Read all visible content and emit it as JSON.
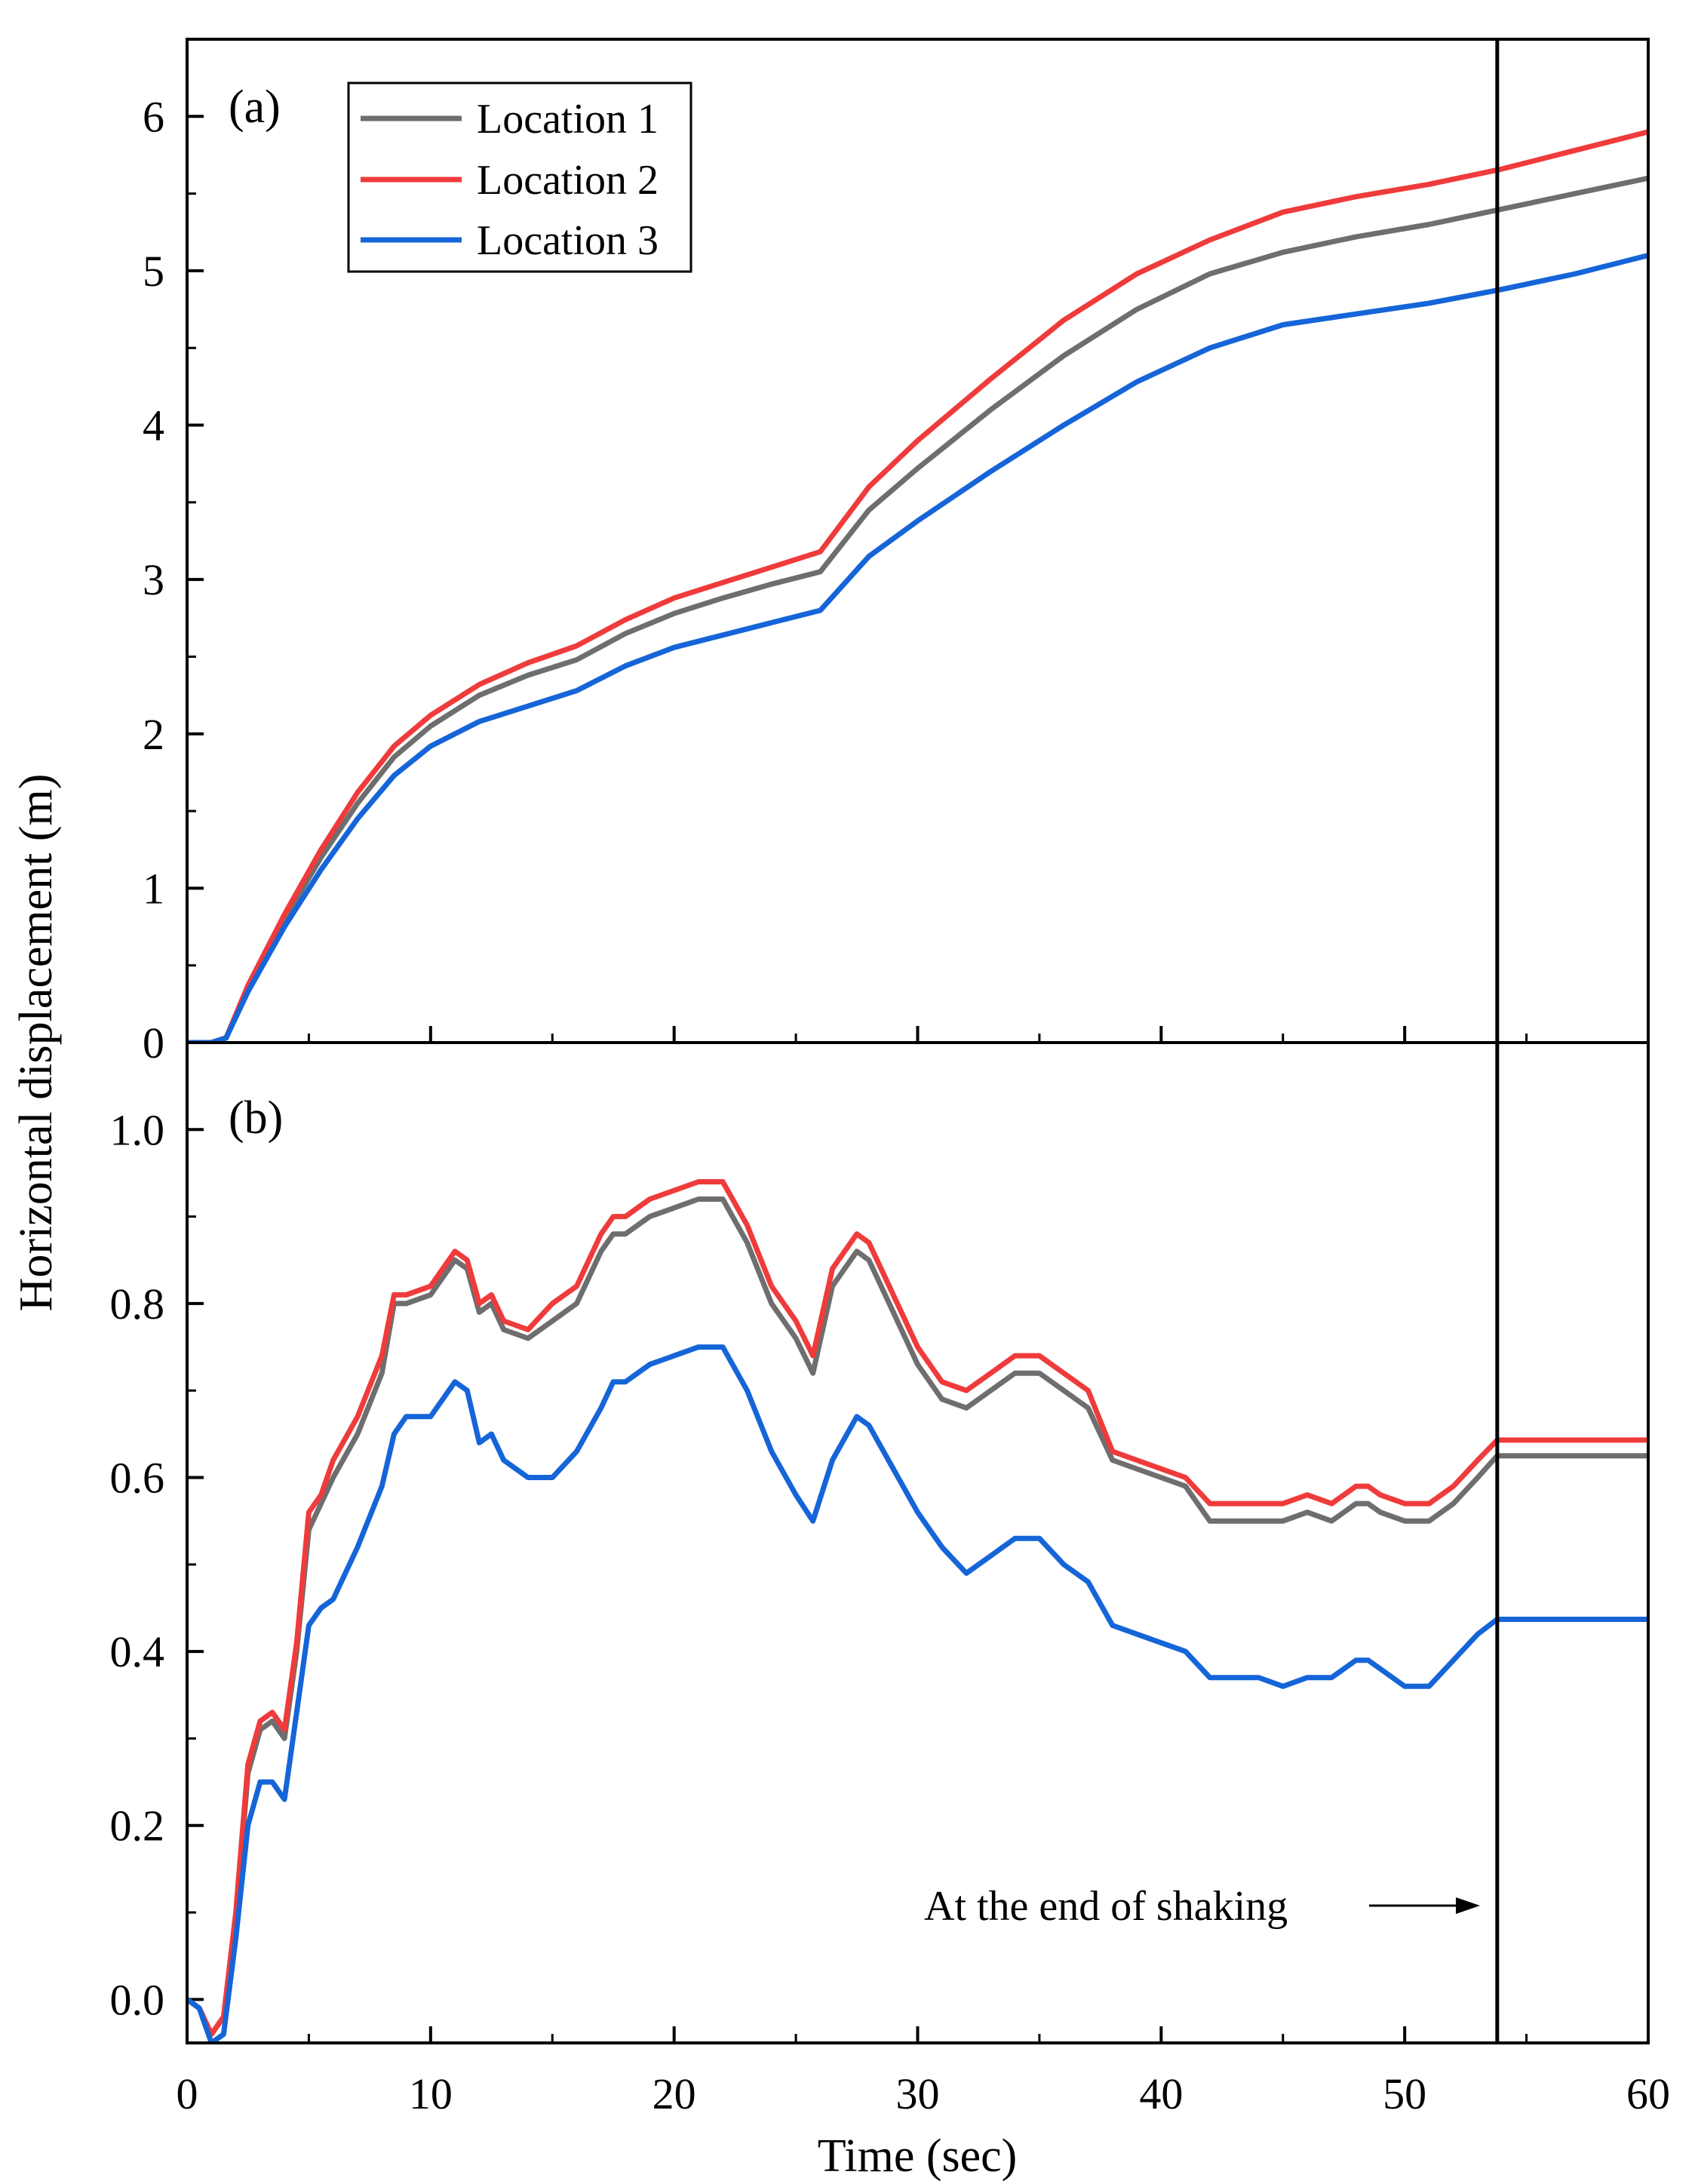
{
  "chart_data": [
    {
      "panel": "(a)",
      "type": "line",
      "title": "",
      "xlabel": "Time (sec)",
      "ylabel": "Horizontal displacement (m)",
      "xlim": [
        0,
        60
      ],
      "ylim": [
        0,
        6.5
      ],
      "xticks": [
        0,
        10,
        20,
        30,
        40,
        50,
        60
      ],
      "yticks": [
        0,
        1,
        2,
        3,
        4,
        5,
        6
      ],
      "ytick_labels": [
        "0",
        "1",
        "2",
        "3",
        "4",
        "5",
        "6"
      ],
      "legend_position": "top-left",
      "series": [
        {
          "name": "Location 1",
          "color": "#6e6e6e",
          "x": [
            0,
            1,
            1.6,
            2.5,
            4,
            5.5,
            7,
            8.5,
            10,
            12,
            14,
            16,
            18,
            20,
            22,
            24,
            26,
            28,
            30,
            33,
            36,
            39,
            42,
            45,
            48,
            51,
            54,
            57,
            60
          ],
          "y": [
            0,
            0,
            0.03,
            0.35,
            0.8,
            1.2,
            1.55,
            1.85,
            2.05,
            2.25,
            2.38,
            2.48,
            2.65,
            2.78,
            2.88,
            2.97,
            3.05,
            3.45,
            3.72,
            4.1,
            4.45,
            4.75,
            4.98,
            5.12,
            5.22,
            5.3,
            5.4,
            5.5,
            5.6
          ]
        },
        {
          "name": "Location 2",
          "color": "#ef3b3b",
          "x": [
            0,
            1,
            1.6,
            2.5,
            4,
            5.5,
            7,
            8.5,
            10,
            12,
            14,
            16,
            18,
            20,
            22,
            24,
            26,
            28,
            30,
            33,
            36,
            39,
            42,
            45,
            48,
            51,
            54,
            57,
            60
          ],
          "y": [
            0,
            0,
            0.03,
            0.37,
            0.83,
            1.25,
            1.62,
            1.92,
            2.12,
            2.32,
            2.46,
            2.57,
            2.74,
            2.88,
            2.98,
            3.08,
            3.18,
            3.6,
            3.9,
            4.3,
            4.68,
            4.98,
            5.2,
            5.38,
            5.48,
            5.56,
            5.66,
            5.78,
            5.9
          ]
        },
        {
          "name": "Location 3",
          "color": "#1565d8",
          "x": [
            0,
            1,
            1.6,
            2.5,
            4,
            5.5,
            7,
            8.5,
            10,
            12,
            14,
            16,
            18,
            20,
            22,
            24,
            26,
            28,
            30,
            33,
            36,
            39,
            42,
            45,
            48,
            51,
            54,
            57,
            60
          ],
          "y": [
            0,
            0,
            0.03,
            0.33,
            0.75,
            1.12,
            1.45,
            1.73,
            1.92,
            2.08,
            2.18,
            2.28,
            2.44,
            2.56,
            2.64,
            2.72,
            2.8,
            3.15,
            3.38,
            3.7,
            4.0,
            4.28,
            4.5,
            4.65,
            4.72,
            4.79,
            4.88,
            4.98,
            5.1
          ]
        }
      ]
    },
    {
      "panel": "(b)",
      "type": "line",
      "title": "",
      "xlabel": "Time (sec)",
      "ylabel": "Horizontal displacement (m)",
      "xlim": [
        0,
        60
      ],
      "ylim": [
        -0.05,
        1.1
      ],
      "xticks": [
        0,
        10,
        20,
        30,
        40,
        50,
        60
      ],
      "yticks": [
        0,
        0.2,
        0.4,
        0.6,
        0.8,
        1.0
      ],
      "ytick_labels": [
        "0.0",
        "0.2",
        "0.4",
        "0.6",
        "0.8",
        "1.0"
      ],
      "annotation": {
        "text": "At the end of shaking",
        "x_time": 53.8
      },
      "series": [
        {
          "name": "Location 1",
          "color": "#6e6e6e",
          "x": [
            0,
            0.5,
            1,
            1.5,
            2,
            2.5,
            3,
            3.5,
            4,
            4.5,
            5,
            5.5,
            6,
            7,
            8,
            8.5,
            9,
            10,
            11,
            11.5,
            12,
            12.5,
            13,
            14,
            15,
            16,
            17,
            17.5,
            18,
            19,
            20,
            21,
            22,
            23,
            24,
            25,
            25.7,
            26.5,
            27.5,
            28,
            29,
            30,
            31,
            32,
            33,
            34,
            35,
            36,
            37,
            38,
            39,
            40,
            41,
            42,
            43,
            44,
            45,
            46,
            47,
            48,
            48.5,
            49,
            50,
            51,
            52,
            53,
            53.8,
            57,
            60
          ],
          "y": [
            0,
            -0.01,
            -0.04,
            -0.02,
            0.09,
            0.26,
            0.31,
            0.32,
            0.3,
            0.4,
            0.54,
            0.57,
            0.6,
            0.65,
            0.72,
            0.8,
            0.8,
            0.81,
            0.85,
            0.84,
            0.79,
            0.8,
            0.77,
            0.76,
            0.78,
            0.8,
            0.86,
            0.88,
            0.88,
            0.9,
            0.91,
            0.92,
            0.92,
            0.87,
            0.8,
            0.76,
            0.72,
            0.82,
            0.86,
            0.85,
            0.79,
            0.73,
            0.69,
            0.68,
            0.7,
            0.72,
            0.72,
            0.7,
            0.68,
            0.62,
            0.61,
            0.6,
            0.59,
            0.55,
            0.55,
            0.55,
            0.55,
            0.56,
            0.55,
            0.57,
            0.57,
            0.56,
            0.55,
            0.55,
            0.57,
            0.6,
            0.625,
            0.625,
            0.625
          ]
        },
        {
          "name": "Location 2",
          "color": "#ef3b3b",
          "x": [
            0,
            0.5,
            1,
            1.5,
            2,
            2.5,
            3,
            3.5,
            4,
            4.5,
            5,
            5.5,
            6,
            7,
            8,
            8.5,
            9,
            10,
            11,
            11.5,
            12,
            12.5,
            13,
            14,
            15,
            16,
            17,
            17.5,
            18,
            19,
            20,
            21,
            22,
            23,
            24,
            25,
            25.7,
            26.5,
            27.5,
            28,
            29,
            30,
            31,
            32,
            33,
            34,
            35,
            36,
            37,
            38,
            39,
            40,
            41,
            42,
            43,
            44,
            45,
            46,
            47,
            48,
            48.5,
            49,
            50,
            51,
            52,
            53,
            53.8,
            57,
            60
          ],
          "y": [
            0,
            -0.01,
            -0.04,
            -0.02,
            0.1,
            0.27,
            0.32,
            0.33,
            0.31,
            0.41,
            0.56,
            0.58,
            0.62,
            0.67,
            0.74,
            0.81,
            0.81,
            0.82,
            0.86,
            0.85,
            0.8,
            0.81,
            0.78,
            0.77,
            0.8,
            0.82,
            0.88,
            0.9,
            0.9,
            0.92,
            0.93,
            0.94,
            0.94,
            0.89,
            0.82,
            0.78,
            0.74,
            0.84,
            0.88,
            0.87,
            0.81,
            0.75,
            0.71,
            0.7,
            0.72,
            0.74,
            0.74,
            0.72,
            0.7,
            0.63,
            0.62,
            0.61,
            0.6,
            0.57,
            0.57,
            0.57,
            0.57,
            0.58,
            0.57,
            0.59,
            0.59,
            0.58,
            0.57,
            0.57,
            0.59,
            0.62,
            0.643,
            0.643,
            0.643
          ]
        },
        {
          "name": "Location 3",
          "color": "#1565d8",
          "x": [
            0,
            0.5,
            1,
            1.5,
            2,
            2.5,
            3,
            3.5,
            4,
            4.5,
            5,
            5.5,
            6,
            7,
            8,
            8.5,
            9,
            10,
            11,
            11.5,
            12,
            12.5,
            13,
            14,
            15,
            16,
            17,
            17.5,
            18,
            19,
            20,
            21,
            22,
            23,
            24,
            25,
            25.7,
            26.5,
            27.5,
            28,
            29,
            30,
            31,
            32,
            33,
            34,
            35,
            36,
            37,
            38,
            39,
            40,
            41,
            42,
            43,
            44,
            45,
            46,
            47,
            48,
            48.5,
            49,
            50,
            51,
            52,
            53,
            53.8,
            57,
            60
          ],
          "y": [
            0,
            -0.01,
            -0.05,
            -0.04,
            0.07,
            0.2,
            0.25,
            0.25,
            0.23,
            0.33,
            0.43,
            0.45,
            0.46,
            0.52,
            0.59,
            0.65,
            0.67,
            0.67,
            0.71,
            0.7,
            0.64,
            0.65,
            0.62,
            0.6,
            0.6,
            0.63,
            0.68,
            0.71,
            0.71,
            0.73,
            0.74,
            0.75,
            0.75,
            0.7,
            0.63,
            0.58,
            0.55,
            0.62,
            0.67,
            0.66,
            0.61,
            0.56,
            0.52,
            0.49,
            0.51,
            0.53,
            0.53,
            0.5,
            0.48,
            0.43,
            0.42,
            0.41,
            0.4,
            0.37,
            0.37,
            0.37,
            0.36,
            0.37,
            0.37,
            0.39,
            0.39,
            0.38,
            0.36,
            0.36,
            0.39,
            0.42,
            0.437,
            0.437,
            0.437
          ]
        }
      ]
    }
  ],
  "legend": {
    "items": [
      {
        "label": "Location 1",
        "color": "#6e6e6e"
      },
      {
        "label": "Location 2",
        "color": "#ef3b3b"
      },
      {
        "label": "Location 3",
        "color": "#1565d8"
      }
    ]
  },
  "labels": {
    "panel_a": "(a)",
    "panel_b": "(b)",
    "xlabel": "Time (sec)",
    "ylabel": "Horizontal displacement (m)",
    "annotation": "At the end of shaking"
  },
  "shaking_end_time": 53.8
}
